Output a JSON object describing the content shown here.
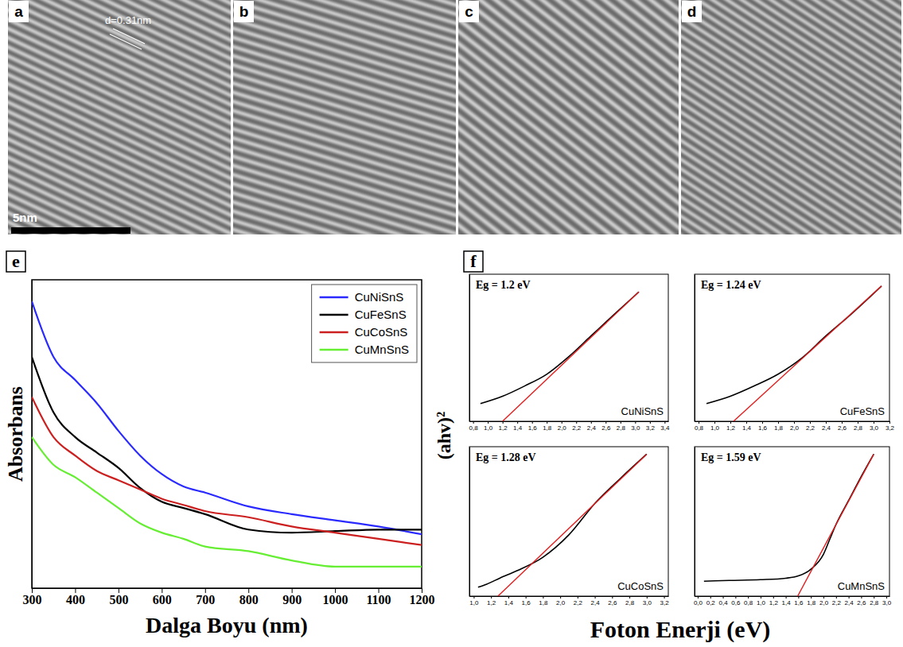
{
  "tem_images": [
    {
      "letter": "a",
      "annotation": "d=0.31nm",
      "scale_bar": "5nm"
    },
    {
      "letter": "b"
    },
    {
      "letter": "c"
    },
    {
      "letter": "d"
    }
  ],
  "absorbance_panel": {
    "letter": "e"
  },
  "tauc_panel": {
    "letter": "f",
    "xlabel": "Foton Enerji (eV)",
    "ylabel": "(ahv)²"
  },
  "chart_data": [
    {
      "type": "line",
      "xlabel": "Dalga Boyu (nm)",
      "ylabel": "Absorbans",
      "x": [
        300,
        350,
        400,
        450,
        500,
        550,
        600,
        650,
        700,
        800,
        900,
        1000,
        1100,
        1200
      ],
      "series": [
        {
          "name": "CuNiSnS",
          "color": "#2a2aff",
          "values": [
            0.93,
            0.75,
            0.675,
            0.6,
            0.51,
            0.43,
            0.37,
            0.33,
            0.31,
            0.265,
            0.24,
            0.22,
            0.2,
            0.175
          ]
        },
        {
          "name": "CuFeSnS",
          "color": "#000000",
          "values": [
            0.75,
            0.57,
            0.49,
            0.44,
            0.39,
            0.325,
            0.28,
            0.26,
            0.24,
            0.19,
            0.18,
            0.185,
            0.19,
            0.19
          ]
        },
        {
          "name": "CuCoSnS",
          "color": "#cc2020",
          "values": [
            0.62,
            0.49,
            0.43,
            0.38,
            0.35,
            0.32,
            0.29,
            0.27,
            0.25,
            0.23,
            0.2,
            0.18,
            0.16,
            0.14
          ]
        },
        {
          "name": "CuMnSnS",
          "color": "#66ee33",
          "values": [
            0.49,
            0.4,
            0.36,
            0.31,
            0.26,
            0.21,
            0.18,
            0.16,
            0.135,
            0.12,
            0.09,
            0.07,
            0.07,
            0.07
          ]
        }
      ],
      "xlim": [
        300,
        1200
      ],
      "xticks": [
        300,
        400,
        500,
        600,
        700,
        800,
        900,
        1000,
        1100,
        1200
      ],
      "ylim": [
        0,
        1
      ],
      "tick_labels": "x",
      "legend": "upper right"
    },
    {
      "type": "line",
      "title": "CuNiSnS",
      "annotations": [
        "Eg = 1.2 eV"
      ],
      "series": [
        {
          "color": "#000000",
          "x": [
            0.9,
            1.2,
            1.5,
            1.8,
            2.1,
            2.4,
            2.7,
            3.05
          ],
          "values": [
            0.12,
            0.17,
            0.24,
            0.32,
            0.44,
            0.58,
            0.72,
            0.88
          ]
        },
        {
          "color": "#e02020",
          "x": [
            1.2,
            3.05
          ],
          "values": [
            0,
            0.88
          ]
        }
      ],
      "xlim": [
        0.75,
        3.45
      ],
      "xticks": [
        {
          "value": 0.8,
          "label": "0,8"
        },
        {
          "value": 1,
          "label": "1,0"
        },
        {
          "value": 1.2,
          "label": "1,2"
        },
        {
          "value": 1.4,
          "label": "1,4"
        },
        {
          "value": 1.6,
          "label": "1,6"
        },
        {
          "value": 1.8,
          "label": "1,8"
        },
        {
          "value": 2,
          "label": "2,0"
        },
        {
          "value": 2.2,
          "label": "2,2"
        },
        {
          "value": 2.4,
          "label": "2,4"
        },
        {
          "value": 2.6,
          "label": "2,6"
        },
        {
          "value": 2.8,
          "label": "2,8"
        },
        {
          "value": 3,
          "label": "3,0"
        },
        {
          "value": 3.2,
          "label": "3,2"
        },
        {
          "value": 3.4,
          "label": "3,4"
        }
      ],
      "ylim": [
        0,
        1
      ],
      "tick_labels": "x"
    },
    {
      "type": "line",
      "title": "CuFeSnS",
      "annotations": [
        "Eg = 1.24 eV"
      ],
      "series": [
        {
          "color": "#000000",
          "x": [
            0.9,
            1.2,
            1.5,
            1.8,
            2.1,
            2.4,
            2.7,
            3.1
          ],
          "values": [
            0.12,
            0.17,
            0.24,
            0.32,
            0.43,
            0.58,
            0.72,
            0.92
          ]
        },
        {
          "color": "#e02020",
          "x": [
            1.24,
            3.1
          ],
          "values": [
            0,
            0.92
          ]
        }
      ],
      "xlim": [
        0.75,
        3.2
      ],
      "xticks": [
        {
          "value": 0.8,
          "label": "0,8"
        },
        {
          "value": 1,
          "label": "1,0"
        },
        {
          "value": 1.2,
          "label": "1,2"
        },
        {
          "value": 1.4,
          "label": "1,4"
        },
        {
          "value": 1.6,
          "label": "1,6"
        },
        {
          "value": 1.8,
          "label": "1,8"
        },
        {
          "value": 2,
          "label": "2,0"
        },
        {
          "value": 2.2,
          "label": "2,2"
        },
        {
          "value": 2.4,
          "label": "2,4"
        },
        {
          "value": 2.6,
          "label": "2,6"
        },
        {
          "value": 2.8,
          "label": "2,8"
        },
        {
          "value": 3,
          "label": "3,0"
        },
        {
          "value": 3.2,
          "label": "3,2"
        }
      ],
      "ylim": [
        0,
        1
      ],
      "tick_labels": "x"
    },
    {
      "type": "line",
      "title": "CuCoSnS",
      "annotations": [
        "Eg = 1.28 eV"
      ],
      "series": [
        {
          "color": "#000000",
          "x": [
            1.05,
            1.15,
            1.3,
            1.5,
            1.8,
            2.1,
            2.4,
            2.7,
            3.0
          ],
          "values": [
            0.06,
            0.08,
            0.12,
            0.17,
            0.26,
            0.41,
            0.62,
            0.79,
            0.95
          ]
        },
        {
          "color": "#e02020",
          "x": [
            1.28,
            3.0
          ],
          "values": [
            0,
            0.95
          ]
        }
      ],
      "xlim": [
        0.95,
        3.25
      ],
      "xticks": [
        {
          "value": 1,
          "label": "1,0"
        },
        {
          "value": 1.2,
          "label": "1,2"
        },
        {
          "value": 1.4,
          "label": "1,4"
        },
        {
          "value": 1.6,
          "label": "1,6"
        },
        {
          "value": 1.8,
          "label": "1,8"
        },
        {
          "value": 2,
          "label": "2,0"
        },
        {
          "value": 2.2,
          "label": "2,2"
        },
        {
          "value": 2.4,
          "label": "2,4"
        },
        {
          "value": 2.6,
          "label": "2,6"
        },
        {
          "value": 2.8,
          "label": "2,8"
        },
        {
          "value": 3,
          "label": "3,0"
        },
        {
          "value": 3.2,
          "label": "3,2"
        }
      ],
      "ylim": [
        0,
        1
      ],
      "tick_labels": "x"
    },
    {
      "type": "line",
      "title": "CuMnSnS",
      "annotations": [
        "Eg = 1.59 eV"
      ],
      "series": [
        {
          "color": "#000000",
          "x": [
            0.1,
            0.5,
            1.0,
            1.4,
            1.6,
            1.8,
            2.0,
            2.1,
            2.2,
            2.4,
            2.6,
            2.8
          ],
          "values": [
            0.1,
            0.105,
            0.11,
            0.12,
            0.135,
            0.18,
            0.28,
            0.38,
            0.48,
            0.64,
            0.8,
            0.95
          ]
        },
        {
          "color": "#e02020",
          "x": [
            1.59,
            2.8
          ],
          "values": [
            0,
            0.95
          ]
        }
      ],
      "xlim": [
        -0.05,
        3.05
      ],
      "xticks": [
        {
          "value": 0,
          "label": "0,0"
        },
        {
          "value": 0.2,
          "label": "0,2"
        },
        {
          "value": 0.4,
          "label": "0,4"
        },
        {
          "value": 0.6,
          "label": "0,6"
        },
        {
          "value": 0.8,
          "label": "0,8"
        },
        {
          "value": 1,
          "label": "1,0"
        },
        {
          "value": 1.2,
          "label": "1,2"
        },
        {
          "value": 1.4,
          "label": "1,4"
        },
        {
          "value": 1.6,
          "label": "1,6"
        },
        {
          "value": 1.8,
          "label": "1,8"
        },
        {
          "value": 2,
          "label": "2,0"
        },
        {
          "value": 2.2,
          "label": "2,2"
        },
        {
          "value": 2.4,
          "label": "2,4"
        },
        {
          "value": 2.6,
          "label": "2,6"
        },
        {
          "value": 2.8,
          "label": "2,8"
        },
        {
          "value": 3,
          "label": "3,0"
        }
      ],
      "ylim": [
        0,
        1
      ],
      "tick_labels": "x"
    }
  ]
}
